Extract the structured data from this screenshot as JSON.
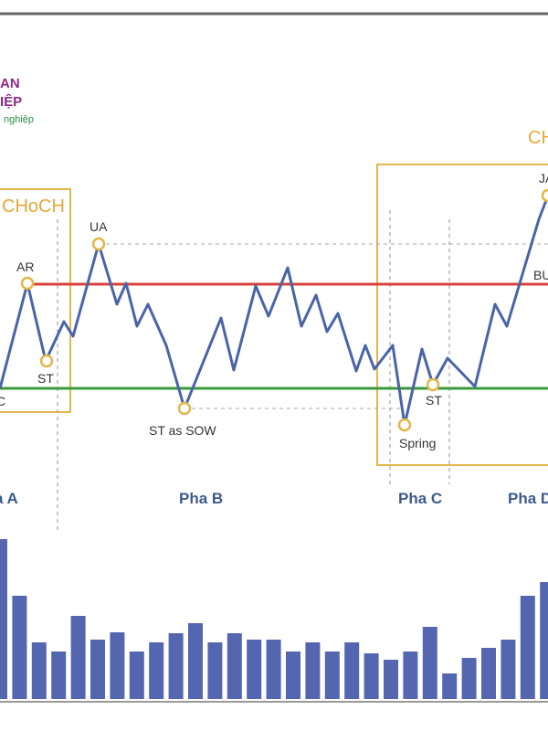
{
  "logo": {
    "line1": "AN",
    "line2": "IỆP",
    "line3": "nghiệp"
  },
  "annotations": {
    "choch_left": "CHoCH",
    "choch_right": "CH"
  },
  "points": {
    "sc": "C",
    "ar": "AR",
    "st1": "ST",
    "ua": "UA",
    "st_sow": "ST as SOW",
    "spring": "Spring",
    "st2": "ST",
    "ja": "JA",
    "bu": "BU"
  },
  "phases": [
    "a A",
    "Pha B",
    "Pha C",
    "Pha D"
  ],
  "volume": [
    175,
    113,
    62,
    52,
    91,
    65,
    73,
    52,
    62,
    72,
    83,
    62,
    72,
    65,
    65,
    52,
    62,
    52,
    62,
    50,
    43,
    52,
    79,
    28,
    45,
    56,
    65,
    113,
    128
  ]
}
